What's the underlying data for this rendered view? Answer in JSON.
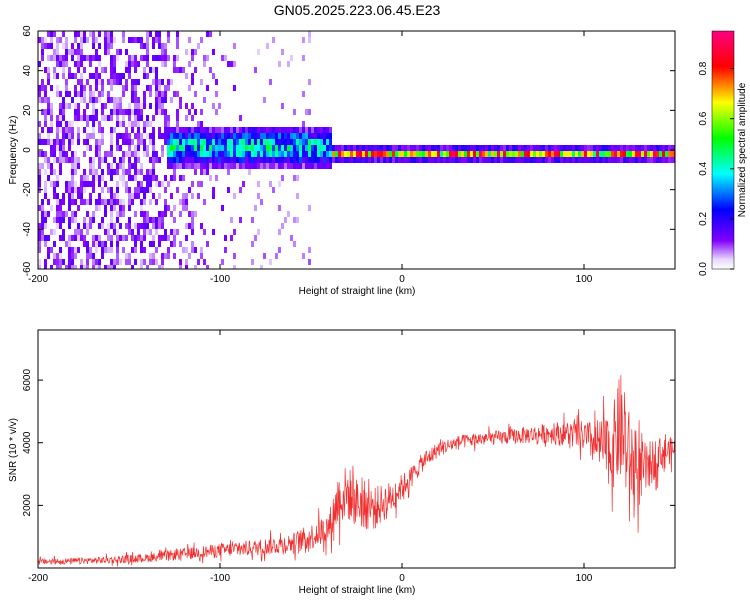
{
  "title": "GN05.2025.223.06.45.E23",
  "colors": {
    "signal": "#f03030",
    "axis": "#000000"
  },
  "chart_data": [
    {
      "type": "heatmap",
      "xlabel": "Height of straight line (km)",
      "ylabel": "Frequency (Hz)",
      "xlim": [
        -200,
        150
      ],
      "ylim": [
        -60,
        60
      ],
      "xticks": [
        -200,
        -100,
        0,
        100
      ],
      "xtick_labels": [
        "-200",
        "-100",
        "0",
        "100"
      ],
      "yticks": [
        -60,
        -40,
        -20,
        0,
        20,
        40,
        60
      ],
      "ytick_labels": [
        "-60",
        "-40",
        "-20",
        "0",
        "20",
        "40",
        "60"
      ],
      "colorbar": {
        "label": "Normalized spectral amplitude",
        "range": [
          0,
          0.95
        ],
        "ticks": [
          0,
          0.2,
          0.4,
          0.6,
          0.8
        ],
        "tick_labels": [
          "0.0",
          "0.2",
          "0.4",
          "0.6",
          "0.8"
        ],
        "colormap": [
          "#ffffff",
          "#8000ff",
          "#0000ff",
          "#00ffff",
          "#00ff00",
          "#ffff00",
          "#ff0000",
          "#ff0080"
        ]
      },
      "features": [
        {
          "x_range": [
            -200,
            -130
          ],
          "y_range": [
            -60,
            60
          ],
          "level": 0.12,
          "description_key": "scattered"
        },
        {
          "x_range": [
            -130,
            -40
          ],
          "y_center": 3,
          "half_width": 6,
          "level": 0.35
        },
        {
          "x_range": [
            -40,
            150
          ],
          "y_center": 0,
          "half_width": 3,
          "level": 0.8
        }
      ]
    },
    {
      "type": "line",
      "xlabel": "Height of straight line (km)",
      "ylabel": "SNR (10 * v/v)",
      "xlim": [
        -200,
        150
      ],
      "ylim": [
        0,
        7600
      ],
      "xticks": [
        -200,
        -100,
        0,
        100
      ],
      "xtick_labels": [
        "-200",
        "-100",
        "0",
        "100"
      ],
      "yticks": [
        2000,
        4000,
        6000
      ],
      "ytick_labels": [
        "2000",
        "4000",
        "6000"
      ],
      "series": [
        {
          "x": [
            -200,
            -180,
            -160,
            -140,
            -120,
            -100,
            -80,
            -60,
            -50,
            -40,
            -35,
            -30,
            -25,
            -20,
            -15,
            -10,
            -5,
            0,
            5,
            10,
            20,
            30,
            40,
            50,
            60,
            70,
            80,
            90,
            100,
            105,
            110,
            115,
            120,
            125,
            130,
            135,
            140,
            145,
            150
          ],
          "y": [
            200,
            220,
            260,
            320,
            450,
            560,
            650,
            800,
            1000,
            1300,
            2200,
            2400,
            2100,
            2000,
            1900,
            2100,
            2300,
            2600,
            2900,
            3300,
            3800,
            4000,
            4100,
            4150,
            4200,
            4250,
            4300,
            4300,
            4200,
            4000,
            3900,
            3700,
            4500,
            3500,
            3000,
            3200,
            3600,
            3700,
            3800
          ],
          "noise": [
            100,
            100,
            120,
            140,
            180,
            220,
            260,
            320,
            420,
            500,
            900,
            900,
            800,
            800,
            700,
            600,
            500,
            400,
            350,
            300,
            250,
            220,
            220,
            220,
            250,
            280,
            320,
            400,
            500,
            700,
            900,
            1200,
            1800,
            1500,
            1100,
            800,
            600,
            450,
            400
          ]
        }
      ]
    }
  ]
}
